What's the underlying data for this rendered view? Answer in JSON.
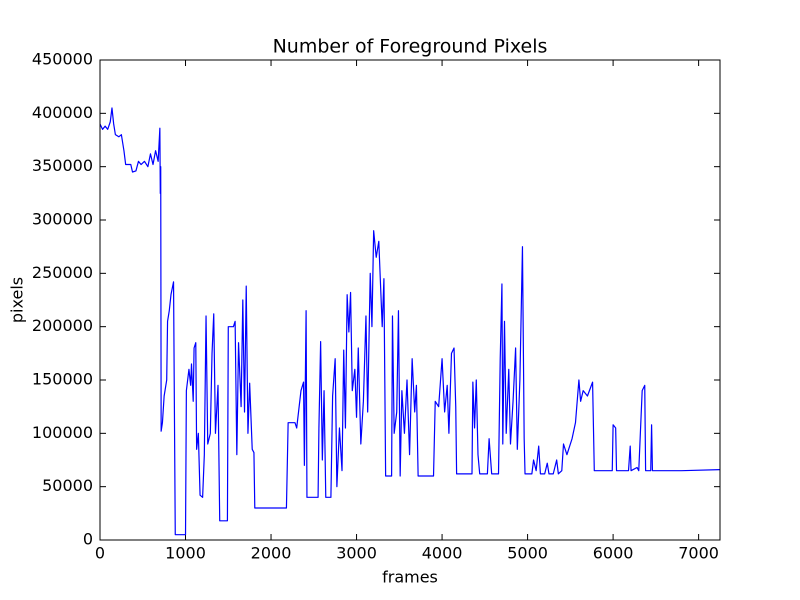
{
  "chart_data": {
    "type": "line",
    "title": "Number of Foreground Pixels",
    "xlabel": "frames",
    "ylabel": "pixels",
    "color": "#0000ff",
    "xlim": [
      0,
      7250
    ],
    "xticks": [
      0,
      1000,
      2000,
      3000,
      4000,
      5000,
      6000,
      7000
    ],
    "ylim": [
      0,
      450000
    ],
    "yticks": [
      0,
      50000,
      100000,
      150000,
      200000,
      250000,
      300000,
      350000,
      400000,
      450000
    ],
    "x": [
      0,
      30,
      60,
      90,
      120,
      140,
      160,
      180,
      220,
      250,
      280,
      300,
      330,
      360,
      380,
      420,
      450,
      480,
      520,
      560,
      590,
      620,
      650,
      680,
      700,
      705,
      710,
      715,
      730,
      750,
      780,
      790,
      810,
      830,
      860,
      880,
      1000,
      1010,
      1040,
      1060,
      1070,
      1090,
      1100,
      1120,
      1130,
      1150,
      1170,
      1200,
      1220,
      1240,
      1260,
      1290,
      1310,
      1330,
      1350,
      1380,
      1400,
      1490,
      1500,
      1560,
      1580,
      1600,
      1620,
      1650,
      1670,
      1690,
      1710,
      1730,
      1750,
      1780,
      1800,
      1810,
      2180,
      2200,
      2280,
      2300,
      2350,
      2380,
      2390,
      2410,
      2420,
      2550,
      2560,
      2580,
      2600,
      2620,
      2640,
      2700,
      2720,
      2750,
      2770,
      2800,
      2830,
      2850,
      2870,
      2890,
      2910,
      2930,
      2950,
      2980,
      3000,
      3020,
      3050,
      3080,
      3110,
      3130,
      3160,
      3180,
      3200,
      3230,
      3260,
      3300,
      3320,
      3340,
      3410,
      3420,
      3440,
      3470,
      3490,
      3510,
      3530,
      3560,
      3590,
      3620,
      3650,
      3680,
      3700,
      3720,
      3900,
      3920,
      3960,
      4000,
      4030,
      4060,
      4080,
      4110,
      4140,
      4160,
      4170,
      4350,
      4360,
      4380,
      4400,
      4420,
      4440,
      4530,
      4550,
      4580,
      4660,
      4680,
      4700,
      4710,
      4730,
      4750,
      4780,
      4800,
      4830,
      4860,
      4880,
      4910,
      4940,
      4960,
      4970,
      5050,
      5070,
      5100,
      5130,
      5150,
      5200,
      5230,
      5250,
      5300,
      5340,
      5360,
      5400,
      5420,
      5460,
      5520,
      5560,
      5600,
      5620,
      5650,
      5700,
      5760,
      5780,
      5990,
      6000,
      6030,
      6040,
      6180,
      6200,
      6210,
      6280,
      6300,
      6340,
      6370,
      6380,
      6440,
      6450,
      6460,
      6800,
      7250
    ],
    "values": [
      390000,
      385000,
      388000,
      385000,
      392000,
      405000,
      390000,
      380000,
      378000,
      380000,
      365000,
      352000,
      352000,
      352000,
      345000,
      346000,
      355000,
      352000,
      355000,
      350000,
      362000,
      352000,
      365000,
      355000,
      386000,
      325000,
      350000,
      102000,
      110000,
      135000,
      150000,
      205000,
      215000,
      230000,
      242000,
      5000,
      5000,
      140000,
      160000,
      145000,
      165000,
      130000,
      180000,
      185000,
      85000,
      100000,
      42000,
      40000,
      80000,
      210000,
      90000,
      100000,
      175000,
      212000,
      100000,
      145000,
      18000,
      18000,
      200000,
      200000,
      205000,
      80000,
      185000,
      125000,
      225000,
      120000,
      238000,
      100000,
      147000,
      85000,
      82000,
      30000,
      30000,
      110000,
      110000,
      105000,
      140000,
      148000,
      70000,
      215000,
      40000,
      40000,
      105000,
      186000,
      75000,
      140000,
      40000,
      40000,
      135000,
      170000,
      50000,
      105000,
      65000,
      178000,
      105000,
      230000,
      195000,
      232000,
      140000,
      160000,
      115000,
      180000,
      90000,
      130000,
      210000,
      120000,
      250000,
      200000,
      290000,
      265000,
      280000,
      200000,
      245000,
      60000,
      60000,
      210000,
      100000,
      120000,
      215000,
      60000,
      140000,
      100000,
      150000,
      80000,
      170000,
      120000,
      145000,
      60000,
      60000,
      130000,
      125000,
      170000,
      120000,
      145000,
      100000,
      175000,
      180000,
      125000,
      62000,
      62000,
      148000,
      105000,
      150000,
      80000,
      62000,
      62000,
      95000,
      62000,
      62000,
      170000,
      240000,
      90000,
      205000,
      100000,
      160000,
      90000,
      130000,
      180000,
      85000,
      150000,
      275000,
      95000,
      62000,
      62000,
      75000,
      65000,
      88000,
      62000,
      62000,
      72000,
      62000,
      62000,
      75000,
      62000,
      65000,
      90000,
      80000,
      95000,
      110000,
      150000,
      130000,
      140000,
      135000,
      148000,
      65000,
      65000,
      108000,
      105000,
      65000,
      65000,
      88000,
      65000,
      68000,
      65000,
      140000,
      145000,
      65000,
      65000,
      108000,
      65000,
      65000,
      66000
    ]
  }
}
